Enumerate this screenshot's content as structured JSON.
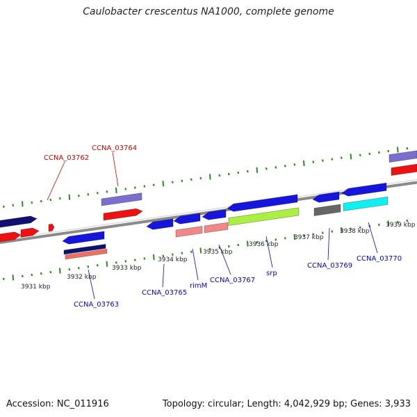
{
  "title": "Caulobacter crescentus NA1000, complete genome",
  "footer": {
    "accession": "Accession: NC_011916",
    "summary": "Topology: circular; Length: 4,042,929 bp; Genes: 3,933"
  },
  "colors": {
    "backbone": "#8a8a8a",
    "tick": "#2a8a1a",
    "label_forward": "#cc0000",
    "label_reverse": "#0000cc"
  },
  "scale": {
    "unit": "kbp",
    "ticks": [
      {
        "label": "3931 kbp"
      },
      {
        "label": "3932 kbp"
      },
      {
        "label": "3933 kbp"
      },
      {
        "label": "3934 kbp"
      },
      {
        "label": "3935 kbp"
      },
      {
        "label": "3936 kbp"
      },
      {
        "label": "3937 kbp"
      },
      {
        "label": "3938 kbp"
      },
      {
        "label": "3939 kbp"
      }
    ]
  },
  "genes": [
    {
      "id": "fwd-1",
      "strand": "+",
      "color": "#101070"
    },
    {
      "id": "fwd-2",
      "strand": "+",
      "color": "#ee1111"
    },
    {
      "id": "fwd-3",
      "strand": "+",
      "color": "#ee1111"
    },
    {
      "id": "fwd-4",
      "strand": "+",
      "color": "#ee1111"
    },
    {
      "id": "CCNA_03764",
      "strand": "+",
      "color": "#7a6fcf"
    },
    {
      "id": "CCNA_03764-b",
      "strand": "+",
      "color": "#ee1111"
    },
    {
      "id": "fwd-right-1",
      "strand": "+",
      "color": "#7a6fcf"
    },
    {
      "id": "fwd-right-2",
      "strand": "+",
      "color": "#ee1111"
    },
    {
      "id": "CCNA_03763",
      "strand": "-",
      "color": "#1515dd"
    },
    {
      "id": "CCNA_03763-b",
      "strand": "-",
      "color": "#101070"
    },
    {
      "id": "CCNA_03763-c",
      "strand": "-",
      "color": "#f07060"
    },
    {
      "id": "CCNA_03765",
      "strand": "-",
      "color": "#1515dd"
    },
    {
      "id": "rimM",
      "strand": "-",
      "color": "#1515dd"
    },
    {
      "id": "rimM-b",
      "strand": "-",
      "color": "#f08888"
    },
    {
      "id": "CCNA_03767",
      "strand": "-",
      "color": "#1515dd"
    },
    {
      "id": "CCNA_03767-b",
      "strand": "-",
      "color": "#f08888"
    },
    {
      "id": "srp",
      "strand": "-",
      "color": "#1515dd"
    },
    {
      "id": "srp-b",
      "strand": "-",
      "color": "#aaf040"
    },
    {
      "id": "CCNA_03769",
      "strand": "-",
      "color": "#1515dd"
    },
    {
      "id": "CCNA_03769-b",
      "strand": "-",
      "color": "#666666"
    },
    {
      "id": "CCNA_03770",
      "strand": "-",
      "color": "#1515dd"
    },
    {
      "id": "CCNA_03770-b",
      "strand": "-",
      "color": "#10f0f0"
    }
  ],
  "labels": [
    {
      "text": "CCNA_03762",
      "strand": "+"
    },
    {
      "text": "CCNA_03764",
      "strand": "+"
    },
    {
      "text": "CCNA_03763",
      "strand": "-"
    },
    {
      "text": "CCNA_03765",
      "strand": "-"
    },
    {
      "text": "rimM",
      "strand": "-"
    },
    {
      "text": "CCNA_03767",
      "strand": "-"
    },
    {
      "text": "srp",
      "strand": "-"
    },
    {
      "text": "CCNA_03769",
      "strand": "-"
    },
    {
      "text": "CCNA_03770",
      "strand": "-"
    }
  ]
}
